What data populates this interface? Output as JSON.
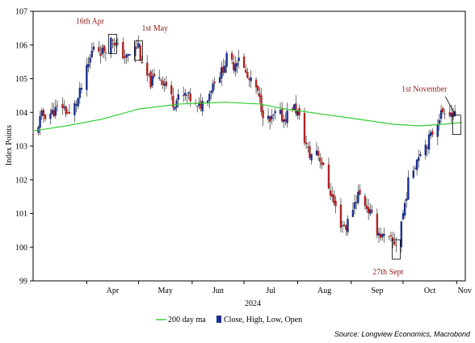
{
  "chart_data": {
    "type": "candlestick",
    "ylabel": "Index Points",
    "year_label": "2024",
    "y_ticks": [
      99,
      100,
      101,
      102,
      103,
      104,
      105,
      106,
      107
    ],
    "ylim": [
      99,
      107
    ],
    "x_start": "2024-03-01",
    "x_end": "2024-11-06",
    "month_ticks": [
      {
        "label": "Apr",
        "date": "2024-04-01"
      },
      {
        "label": "May",
        "date": "2024-05-01"
      },
      {
        "label": "Jun",
        "date": "2024-06-01"
      },
      {
        "label": "Jul",
        "date": "2024-07-01"
      },
      {
        "label": "Aug",
        "date": "2024-08-01"
      },
      {
        "label": "Sep",
        "date": "2024-09-01"
      },
      {
        "label": "Oct",
        "date": "2024-10-01"
      },
      {
        "label": "Nov",
        "date": "2024-11-01"
      }
    ],
    "series": [
      {
        "name": "200 day ma",
        "color": "#33cc33",
        "type": "line",
        "points": [
          [
            "2024-03-01",
            103.45
          ],
          [
            "2024-03-20",
            103.6
          ],
          [
            "2024-04-10",
            103.8
          ],
          [
            "2024-05-01",
            104.1
          ],
          [
            "2024-05-25",
            104.25
          ],
          [
            "2024-06-20",
            104.3
          ],
          [
            "2024-07-10",
            104.25
          ],
          [
            "2024-07-25",
            104.1
          ],
          [
            "2024-08-15",
            103.95
          ],
          [
            "2024-09-05",
            103.8
          ],
          [
            "2024-09-25",
            103.65
          ],
          [
            "2024-10-10",
            103.6
          ],
          [
            "2024-10-25",
            103.65
          ],
          [
            "2024-11-04",
            103.7
          ]
        ]
      },
      {
        "name": "Close, High, Low, Open",
        "type": "candlestick",
        "up_color": "#1b2f8f",
        "down_color": "#b22222",
        "path": [
          [
            "2024-03-01",
            103.3
          ],
          [
            "2024-03-06",
            103.9
          ],
          [
            "2024-03-12",
            104.0
          ],
          [
            "2024-03-18",
            104.2
          ],
          [
            "2024-03-22",
            103.9
          ],
          [
            "2024-03-27",
            104.4
          ],
          [
            "2024-04-02",
            105.4
          ],
          [
            "2024-04-05",
            106.0
          ],
          [
            "2024-04-10",
            105.8
          ],
          [
            "2024-04-16",
            106.2
          ],
          [
            "2024-04-19",
            105.9
          ],
          [
            "2024-04-24",
            105.6
          ],
          [
            "2024-04-29",
            105.9
          ],
          [
            "2024-05-01",
            106.0
          ],
          [
            "2024-05-03",
            105.3
          ],
          [
            "2024-05-08",
            104.9
          ],
          [
            "2024-05-13",
            105.1
          ],
          [
            "2024-05-17",
            104.8
          ],
          [
            "2024-05-21",
            104.3
          ],
          [
            "2024-05-24",
            104.4
          ],
          [
            "2024-05-28",
            104.5
          ],
          [
            "2024-05-31",
            104.4
          ],
          [
            "2024-06-04",
            104.1
          ],
          [
            "2024-06-07",
            104.3
          ],
          [
            "2024-06-11",
            104.6
          ],
          [
            "2024-06-14",
            105.0
          ],
          [
            "2024-06-18",
            105.2
          ],
          [
            "2024-06-21",
            105.6
          ],
          [
            "2024-06-25",
            105.4
          ],
          [
            "2024-06-28",
            105.7
          ],
          [
            "2024-07-03",
            105.0
          ],
          [
            "2024-07-08",
            104.7
          ],
          [
            "2024-07-12",
            104.0
          ],
          [
            "2024-07-16",
            103.7
          ],
          [
            "2024-07-20",
            104.0
          ],
          [
            "2024-07-24",
            103.8
          ],
          [
            "2024-07-29",
            104.2
          ],
          [
            "2024-08-01",
            104.0
          ],
          [
            "2024-08-05",
            103.2
          ],
          [
            "2024-08-08",
            102.7
          ],
          [
            "2024-08-12",
            102.9
          ],
          [
            "2024-08-15",
            102.5
          ],
          [
            "2024-08-19",
            101.8
          ],
          [
            "2024-08-22",
            101.3
          ],
          [
            "2024-08-26",
            100.7
          ],
          [
            "2024-08-29",
            100.6
          ],
          [
            "2024-09-02",
            101.2
          ],
          [
            "2024-09-05",
            101.6
          ],
          [
            "2024-09-09",
            101.3
          ],
          [
            "2024-09-12",
            101.0
          ],
          [
            "2024-09-16",
            100.5
          ],
          [
            "2024-09-19",
            100.3
          ],
          [
            "2024-09-23",
            100.2
          ],
          [
            "2024-09-27",
            100.1
          ],
          [
            "2024-10-01",
            101.0
          ],
          [
            "2024-10-04",
            101.9
          ],
          [
            "2024-10-08",
            102.5
          ],
          [
            "2024-10-11",
            102.9
          ],
          [
            "2024-10-15",
            103.1
          ],
          [
            "2024-10-18",
            103.4
          ],
          [
            "2024-10-22",
            103.9
          ],
          [
            "2024-10-25",
            104.1
          ],
          [
            "2024-10-29",
            104.0
          ],
          [
            "2024-11-01",
            103.8
          ]
        ]
      }
    ],
    "annotations": [
      {
        "text": "16th Apr",
        "date": "2024-04-16",
        "value": 106.2
      },
      {
        "text": "1st May",
        "date": "2024-05-01",
        "value": 106.0
      },
      {
        "text": "27th Sept",
        "date": "2024-09-27",
        "value": 100.1
      },
      {
        "text": "1st November",
        "date": "2024-11-01",
        "value": 103.8
      }
    ],
    "source": "Source: Longview Economics, Macrobond"
  }
}
